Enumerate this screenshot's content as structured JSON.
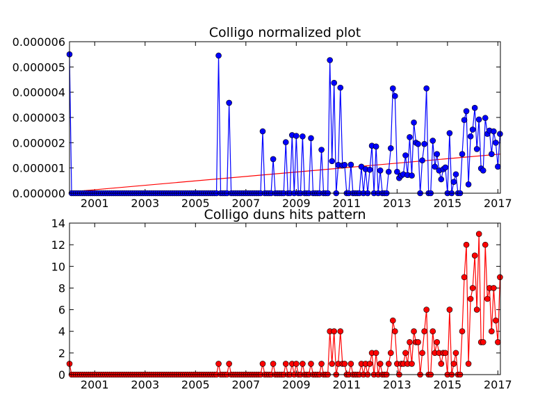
{
  "chart_data": [
    {
      "type": "line",
      "title": "Colligo normalized plot",
      "xlim": [
        2000.0,
        2017.1
      ],
      "ylim": [
        0,
        6e-06
      ],
      "xticks": [
        2001,
        2003,
        2005,
        2007,
        2009,
        2011,
        2013,
        2015,
        2017
      ],
      "xtick_labels": [
        "2001",
        "2003",
        "2005",
        "2007",
        "2009",
        "2011",
        "2013",
        "2015",
        "2017"
      ],
      "yticks": [
        0,
        1e-06,
        2e-06,
        3e-06,
        4e-06,
        5e-06,
        6e-06
      ],
      "ytick_labels": [
        "0.000000",
        "0.000001",
        "0.000002",
        "0.000003",
        "0.000004",
        "0.000005",
        "0.000006"
      ],
      "grid": false,
      "colors": {
        "series": "#0000ff",
        "marker_fill": "#0000ff",
        "trend": "#ff0000"
      },
      "series": [
        {
          "x": [
            2000.0,
            2000.083,
            2005.917,
            2006.333,
            2007.667,
            2008.083,
            2008.583,
            2008.833,
            2009.0,
            2009.25,
            2009.583,
            2010.0,
            2010.333,
            2010.417,
            2010.5,
            2010.667,
            2010.75,
            2010.833,
            2010.917,
            2011.167,
            2011.583,
            2011.75,
            2011.917,
            2012.0,
            2012.167,
            2012.333,
            2012.417,
            2012.667,
            2012.75,
            2012.833,
            2012.917,
            2013.0,
            2013.083,
            2013.167,
            2013.25,
            2013.333,
            2013.417,
            2013.5,
            2013.583,
            2013.667,
            2013.75,
            2013.833,
            2013.917,
            2014.0,
            2014.083,
            2014.167,
            2014.25,
            2014.333,
            2014.417,
            2014.5,
            2014.583,
            2014.667,
            2014.75,
            2014.833,
            2014.917,
            2015.0,
            2015.083,
            2015.167,
            2015.25,
            2015.333,
            2015.417,
            2015.5,
            2015.583,
            2015.667,
            2015.75,
            2015.833,
            2015.917,
            2016.0,
            2016.083,
            2016.167,
            2016.25,
            2016.333,
            2016.417,
            2016.5,
            2016.583,
            2016.667,
            2016.75,
            2016.833,
            2016.917,
            2017.0,
            2017.083
          ],
          "y": [
            5.5e-06,
            0,
            5.45e-06,
            3.58e-06,
            2.45e-06,
            1.35e-06,
            2.02e-06,
            2.3e-06,
            2.27e-06,
            2.25e-06,
            2.18e-06,
            1.72e-06,
            5.27e-06,
            1.27e-06,
            4.37e-06,
            1.12e-06,
            4.18e-06,
            1.1e-06,
            1.12e-06,
            1.13e-06,
            1.05e-06,
            9.5e-07,
            9.3e-07,
            1.88e-06,
            1.85e-06,
            9e-07,
            0,
            8.5e-07,
            1.78e-06,
            4.15e-06,
            3.85e-06,
            8.5e-07,
            6e-07,
            7e-07,
            7.5e-07,
            1.5e-06,
            7.2e-07,
            2.22e-06,
            7e-07,
            2.8e-06,
            2e-06,
            1.95e-06,
            0,
            1.3e-06,
            1.95e-06,
            4.15e-06,
            0,
            0,
            2.08e-06,
            1.05e-06,
            1.55e-06,
            9e-07,
            5.5e-07,
            9.5e-07,
            1.02e-06,
            0,
            2.38e-06,
            0,
            4.5e-07,
            7.5e-07,
            0,
            0,
            1.55e-06,
            2.9e-06,
            3.25e-06,
            3.5e-07,
            2.25e-06,
            2.52e-06,
            3.38e-06,
            1.75e-06,
            2.92e-06,
            9.8e-07,
            9e-07,
            2.98e-06,
            2.35e-06,
            2.48e-06,
            1.55e-06,
            2.45e-06,
            2e-06,
            1.05e-06,
            2.35e-06
          ],
          "baseline_value": 0
        }
      ],
      "trend_line": {
        "x": [
          2000.0,
          2017.1
        ],
        "y": [
          5e-08,
          1.55e-06
        ]
      }
    },
    {
      "type": "line",
      "title": "Colligo duns hits pattern",
      "xlim": [
        2000.0,
        2017.1
      ],
      "ylim": [
        0,
        14
      ],
      "xticks": [
        2001,
        2003,
        2005,
        2007,
        2009,
        2011,
        2013,
        2015,
        2017
      ],
      "xtick_labels": [
        "2001",
        "2003",
        "2005",
        "2007",
        "2009",
        "2011",
        "2013",
        "2015",
        "2017"
      ],
      "yticks": [
        0,
        2,
        4,
        6,
        8,
        10,
        12,
        14
      ],
      "ytick_labels": [
        "0",
        "2",
        "4",
        "6",
        "8",
        "10",
        "12",
        "14"
      ],
      "grid": false,
      "colors": {
        "series": "#ff0000",
        "marker_fill": "#ff0000"
      },
      "series": [
        {
          "x": [
            2000.0,
            2000.083,
            2005.917,
            2006.333,
            2007.667,
            2008.083,
            2008.583,
            2008.833,
            2009.0,
            2009.25,
            2009.583,
            2010.0,
            2010.333,
            2010.417,
            2010.5,
            2010.667,
            2010.75,
            2010.833,
            2010.917,
            2011.167,
            2011.583,
            2011.75,
            2011.917,
            2012.0,
            2012.167,
            2012.333,
            2012.417,
            2012.667,
            2012.75,
            2012.833,
            2012.917,
            2013.0,
            2013.083,
            2013.167,
            2013.25,
            2013.333,
            2013.417,
            2013.5,
            2013.583,
            2013.667,
            2013.75,
            2013.833,
            2013.917,
            2014.0,
            2014.083,
            2014.167,
            2014.25,
            2014.333,
            2014.417,
            2014.5,
            2014.583,
            2014.667,
            2014.75,
            2014.833,
            2014.917,
            2015.0,
            2015.083,
            2015.167,
            2015.25,
            2015.333,
            2015.417,
            2015.5,
            2015.583,
            2015.667,
            2015.75,
            2015.833,
            2015.917,
            2016.0,
            2016.083,
            2016.167,
            2016.25,
            2016.333,
            2016.417,
            2016.5,
            2016.583,
            2016.667,
            2016.75,
            2016.833,
            2016.917,
            2017.0,
            2017.083
          ],
          "y": [
            1,
            0,
            1,
            1,
            1,
            1,
            1,
            1,
            1,
            1,
            1,
            1,
            4,
            1,
            4,
            1,
            4,
            1,
            1,
            1,
            1,
            1,
            1,
            2,
            2,
            1,
            0,
            1,
            2,
            5,
            4,
            1,
            0,
            1,
            1,
            2,
            1,
            3,
            1,
            4,
            3,
            3,
            0,
            2,
            4,
            6,
            0,
            0,
            4,
            2,
            3,
            2,
            1,
            2,
            2,
            0,
            6,
            0,
            1,
            2,
            0,
            0,
            4,
            9,
            12,
            1,
            7,
            8,
            11,
            6,
            13,
            3,
            3,
            12,
            7,
            8,
            4,
            8,
            5,
            3,
            9
          ],
          "baseline_value": 0
        }
      ]
    }
  ]
}
